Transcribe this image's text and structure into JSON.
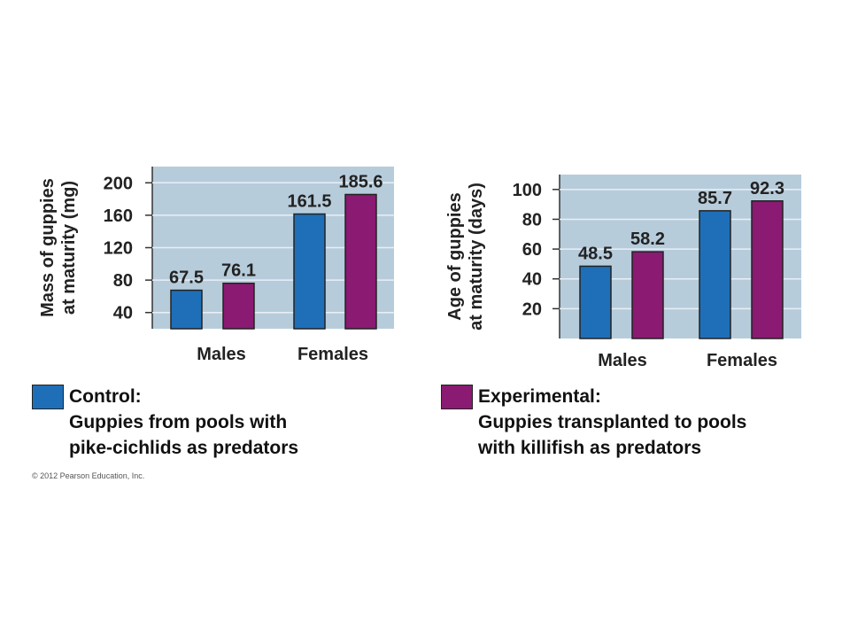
{
  "colors": {
    "control": "#1f6fb8",
    "experimental": "#8a1a72",
    "panel": "#b7ccdb"
  },
  "chart_data": [
    {
      "type": "bar",
      "ylabel": [
        "Mass of guppies",
        "at maturity (mg)"
      ],
      "categories": [
        "Males",
        "Females"
      ],
      "yticks": [
        40,
        80,
        120,
        160,
        200
      ],
      "ylim": [
        20,
        220
      ],
      "series": [
        {
          "name": "Control",
          "values": [
            67.5,
            161.5
          ]
        },
        {
          "name": "Experimental",
          "values": [
            76.1,
            185.6
          ]
        }
      ],
      "data_labels": [
        [
          "67.5",
          "161.5"
        ],
        [
          "76.1",
          "185.6"
        ]
      ]
    },
    {
      "type": "bar",
      "ylabel": [
        "Age of guppies",
        "at maturity (days)"
      ],
      "categories": [
        "Males",
        "Females"
      ],
      "yticks": [
        20,
        40,
        60,
        80,
        100
      ],
      "ylim": [
        0,
        110
      ],
      "series": [
        {
          "name": "Control",
          "values": [
            48.5,
            85.7
          ]
        },
        {
          "name": "Experimental",
          "values": [
            58.2,
            92.3
          ]
        }
      ],
      "data_labels": [
        [
          "48.5",
          "85.7"
        ],
        [
          "58.2",
          "92.3"
        ]
      ]
    }
  ],
  "legend": {
    "control": {
      "title": "Control:",
      "line1": "Guppies from pools with",
      "line2": "pike-cichlids as predators"
    },
    "experimental": {
      "title": "Experimental:",
      "line1": "Guppies transplanted to pools",
      "line2": "with killifish as predators"
    }
  },
  "copyright": "© 2012 Pearson Education, Inc."
}
